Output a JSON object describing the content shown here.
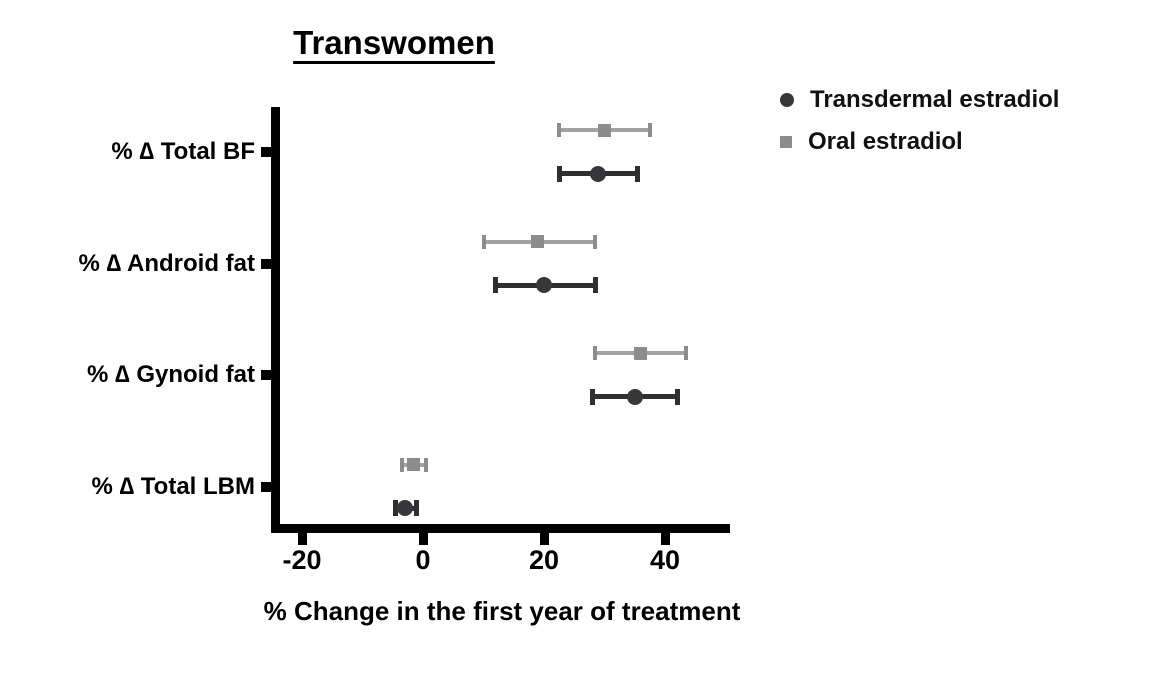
{
  "page": {
    "background": "#ffffff"
  },
  "chart_data": {
    "type": "scatter",
    "subtype": "horizontal-dot-plot-with-error-bars",
    "title": "Transwomen",
    "xlabel": "% Change in the first year of treatment",
    "categories": [
      "% ∆ Total BF",
      "% ∆ Android fat",
      "% ∆ Gynoid fat",
      "% ∆ Total LBM"
    ],
    "x_ticks": [
      -20,
      0,
      20,
      40
    ],
    "xlim": [
      -25,
      51
    ],
    "grid": false,
    "legend_position": "top-right",
    "axis_color": "#000000",
    "series": [
      {
        "name": "Transdermal estradiol",
        "marker": "circle",
        "color": "#37373a",
        "bar_color": "#2f2f31",
        "values": [
          29,
          20,
          35,
          -3
        ],
        "ci_low": [
          22.5,
          12,
          28,
          -4.5
        ],
        "ci_high": [
          35.5,
          28.5,
          42,
          -1
        ]
      },
      {
        "name": "Oral estradiol",
        "marker": "square",
        "color": "#8c8c8c",
        "bar_color": "#a2a2a2",
        "values": [
          30,
          19,
          36,
          -1.5
        ],
        "ci_low": [
          22.5,
          10,
          28.5,
          -3.5
        ],
        "ci_high": [
          37.5,
          28.5,
          43.5,
          0.5
        ]
      }
    ]
  }
}
